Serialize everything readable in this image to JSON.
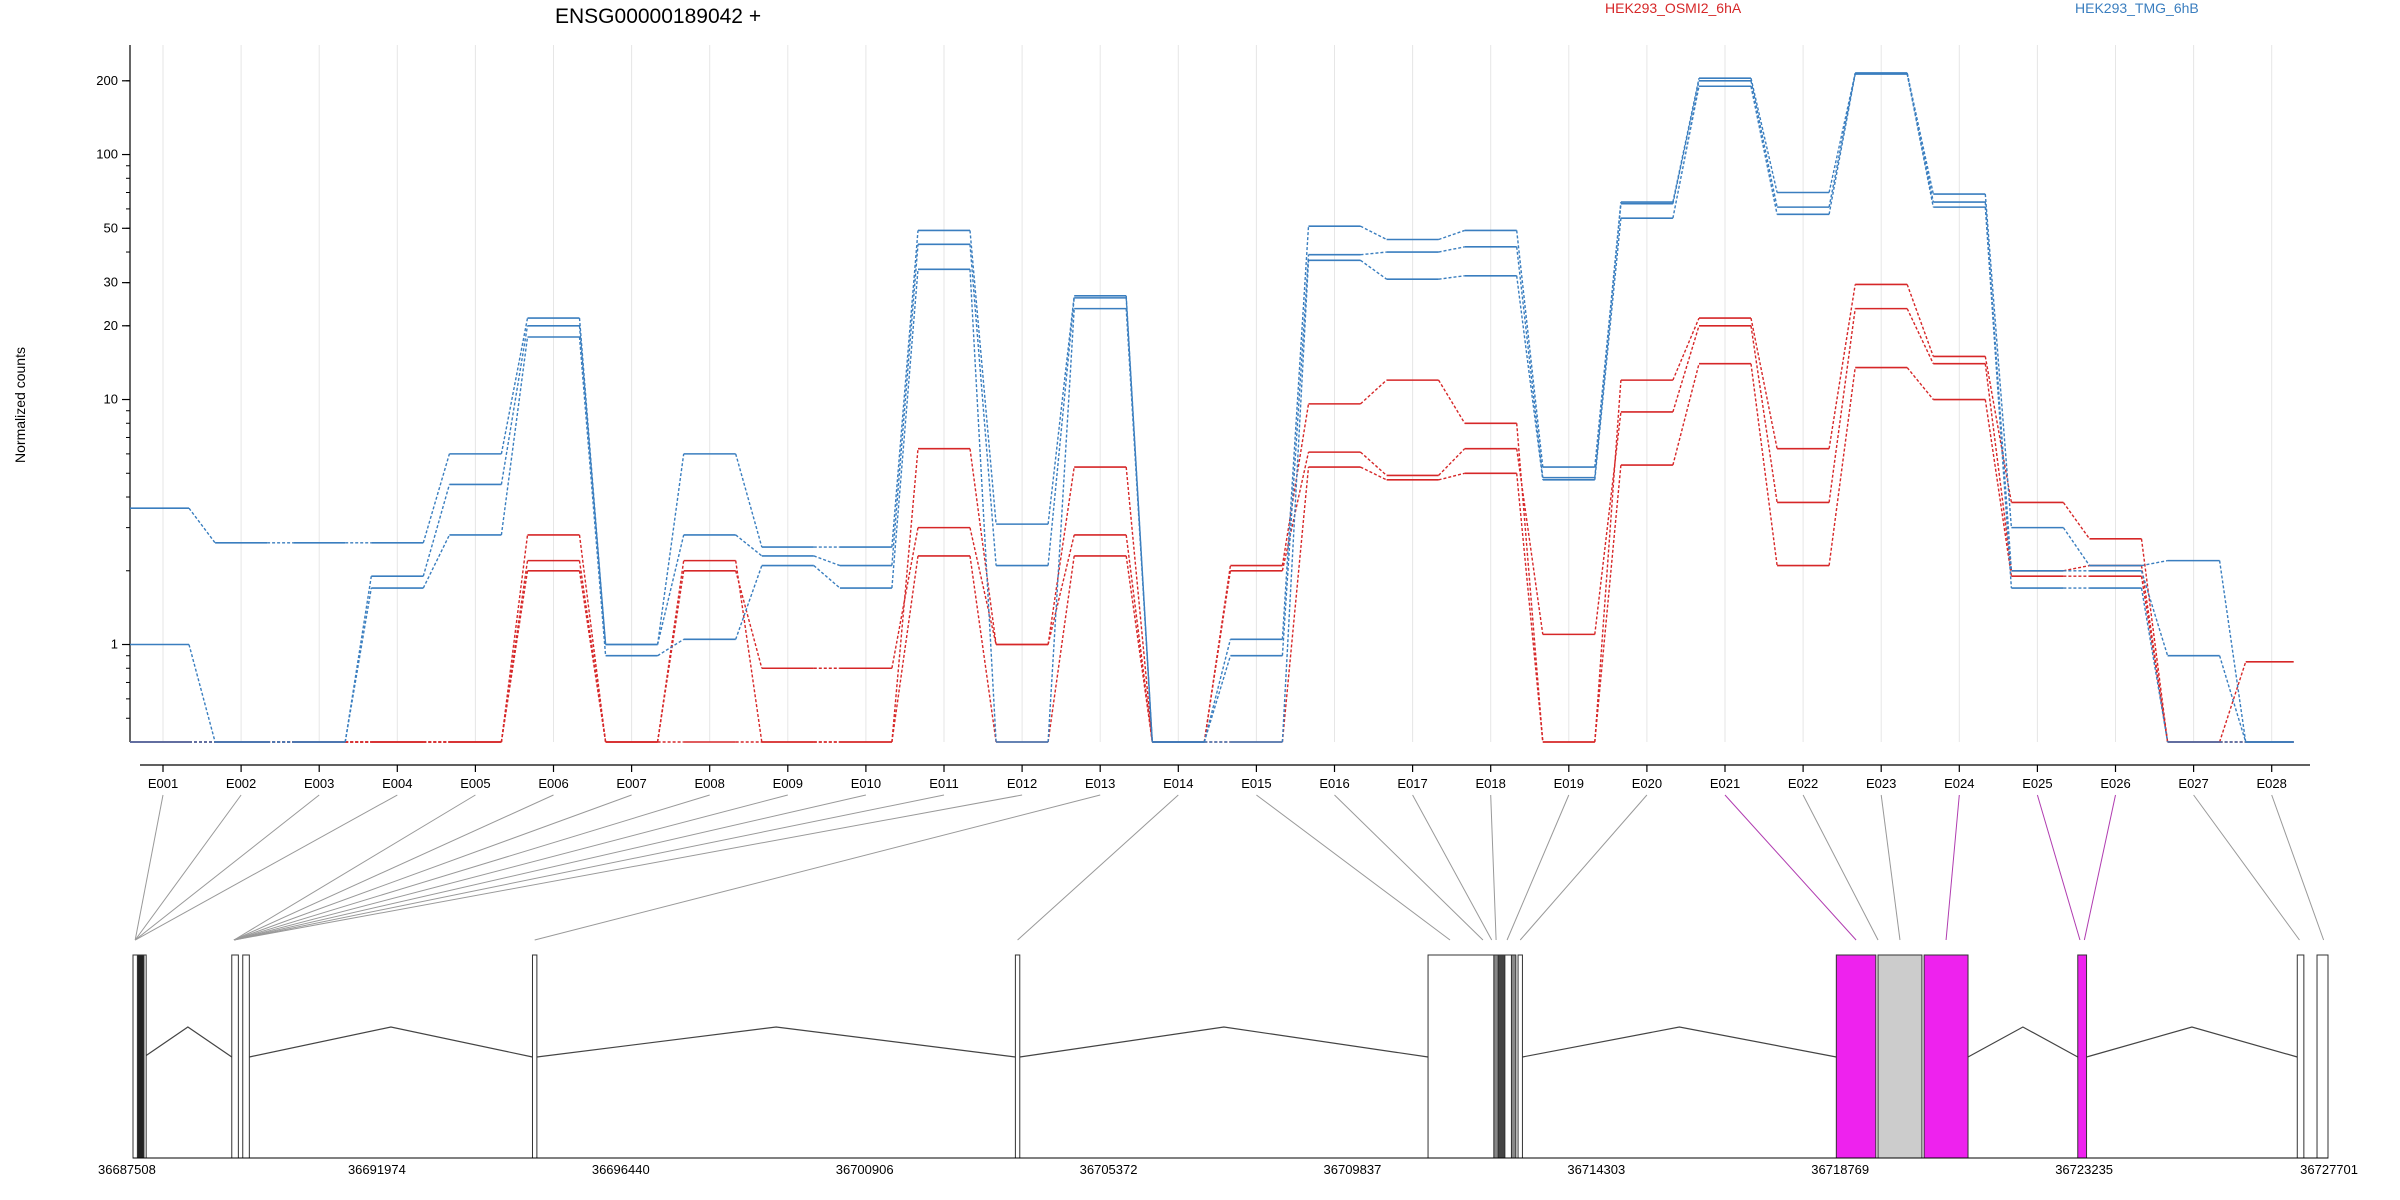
{
  "title": "ENSG00000189042 +",
  "legend": [
    {
      "label": "HEK293_OSMI2_6hA",
      "color": "#d62728"
    },
    {
      "label": "HEK293_TMG_6hB",
      "color": "#3a7ebf"
    }
  ],
  "ylabel": "Normalized counts",
  "coord_labels": [
    "36687508",
    "36691974",
    "36696440",
    "36700906",
    "36705372",
    "36709837",
    "36714303",
    "36718769",
    "36723235",
    "36727701"
  ],
  "chart_data": {
    "type": "line",
    "y_scale": "log",
    "y_ticks": [
      1,
      10,
      20,
      30,
      50,
      100,
      200
    ],
    "ylim": [
      0.4,
      280
    ],
    "categories": [
      "E001",
      "E002",
      "E003",
      "E004",
      "E005",
      "E006",
      "E007",
      "E008",
      "E009",
      "E010",
      "E011",
      "E012",
      "E013",
      "E014",
      "E015",
      "E016",
      "E017",
      "E018",
      "E019",
      "E020",
      "E021",
      "E022",
      "E023",
      "E024",
      "E025",
      "E026",
      "E027",
      "E028"
    ],
    "series": [
      {
        "group": "HEK293_OSMI2_6hA",
        "color": "#d62728",
        "values": [
          0.4,
          0.4,
          0.4,
          0.4,
          0.4,
          2.8,
          0.4,
          2.2,
          0.4,
          0.4,
          6.3,
          1.0,
          2.8,
          0.4,
          2.1,
          9.6,
          12,
          8.0,
          0.4,
          12,
          21.5,
          6.3,
          29.5,
          15,
          3.8,
          2.7,
          0.4,
          0.85
        ]
      },
      {
        "group": "HEK293_OSMI2_6hA",
        "color": "#d62728",
        "values": [
          0.4,
          0.4,
          0.4,
          0.4,
          0.4,
          2.2,
          0.4,
          2.0,
          0.8,
          0.8,
          3.0,
          1.0,
          5.3,
          0.4,
          2.0,
          6.1,
          4.9,
          6.3,
          1.1,
          8.9,
          20,
          3.8,
          23.5,
          14,
          2.0,
          2.1,
          0.4,
          0.4
        ]
      },
      {
        "group": "HEK293_OSMI2_6hA",
        "color": "#d62728",
        "values": [
          0.4,
          0.4,
          0.4,
          0.4,
          0.4,
          2.0,
          0.4,
          0.4,
          0.4,
          0.4,
          2.3,
          0.4,
          2.3,
          0.4,
          0.4,
          5.3,
          4.7,
          5.0,
          0.4,
          5.4,
          14,
          2.1,
          13.5,
          10,
          1.9,
          1.9,
          0.4,
          0.4
        ]
      },
      {
        "group": "HEK293_TMG_6hB",
        "color": "#3a7ebf",
        "values": [
          3.6,
          2.6,
          2.6,
          2.6,
          6.0,
          21.5,
          1.0,
          6.0,
          2.5,
          2.5,
          49,
          3.1,
          26.5,
          0.4,
          1.05,
          51,
          45,
          49,
          5.3,
          64,
          205,
          70,
          215,
          69,
          3.0,
          2.1,
          2.2,
          0.4
        ]
      },
      {
        "group": "HEK293_TMG_6hB",
        "color": "#3a7ebf",
        "values": [
          1.0,
          0.4,
          0.4,
          1.9,
          4.5,
          20,
          1.0,
          2.8,
          2.3,
          2.1,
          43,
          2.1,
          26,
          0.4,
          0.9,
          39,
          40,
          42,
          4.8,
          63,
          200,
          61,
          215,
          64,
          2.0,
          2.0,
          0.9,
          0.4
        ]
      },
      {
        "group": "HEK293_TMG_6hB",
        "color": "#3a7ebf",
        "values": [
          0.4,
          0.4,
          0.4,
          1.7,
          2.8,
          18,
          0.9,
          1.05,
          2.1,
          1.7,
          34,
          0.4,
          23.5,
          0.4,
          0.4,
          37,
          31,
          32,
          4.7,
          55,
          190,
          57,
          213,
          61,
          1.7,
          1.7,
          0.4,
          0.4
        ]
      }
    ]
  },
  "gene_model": {
    "exons": [
      {
        "id": "E001",
        "start": 0.0,
        "end": 0.006,
        "fill": "#ffffff"
      },
      {
        "id": "E002",
        "start": 0.002,
        "end": 0.005,
        "fill": "#222222"
      },
      {
        "id": "E003",
        "start": 0.045,
        "end": 0.048,
        "fill": "#ffffff"
      },
      {
        "id": "E004",
        "start": 0.05,
        "end": 0.053,
        "fill": "#ffffff"
      },
      {
        "id": "E005",
        "start": 0.182,
        "end": 0.184,
        "fill": "#ffffff"
      },
      {
        "id": "E006",
        "start": 0.402,
        "end": 0.404,
        "fill": "#ffffff"
      },
      {
        "id": "E007",
        "start": 0.59,
        "end": 0.62,
        "fill": "#ffffff"
      },
      {
        "id": "E008",
        "start": 0.62,
        "end": 0.622,
        "fill": "#888888"
      },
      {
        "id": "E009",
        "start": 0.622,
        "end": 0.625,
        "fill": "#444444"
      },
      {
        "id": "E010",
        "start": 0.625,
        "end": 0.628,
        "fill": "#ffffff"
      },
      {
        "id": "E011",
        "start": 0.628,
        "end": 0.63,
        "fill": "#888888"
      },
      {
        "id": "E012",
        "start": 0.631,
        "end": 0.633,
        "fill": "#ffffff"
      },
      {
        "id": "E013",
        "start": 0.776,
        "end": 0.794,
        "fill": "#ee22ee"
      },
      {
        "id": "E014",
        "start": 0.795,
        "end": 0.815,
        "fill": "#cccccc"
      },
      {
        "id": "E015",
        "start": 0.816,
        "end": 0.836,
        "fill": "#ee22ee"
      },
      {
        "id": "E016",
        "start": 0.886,
        "end": 0.89,
        "fill": "#ee22ee"
      },
      {
        "id": "E017",
        "start": 0.986,
        "end": 0.989,
        "fill": "#ffffff"
      },
      {
        "id": "E018",
        "start": 0.995,
        "end": 1.0,
        "fill": "#ffffff"
      }
    ]
  }
}
